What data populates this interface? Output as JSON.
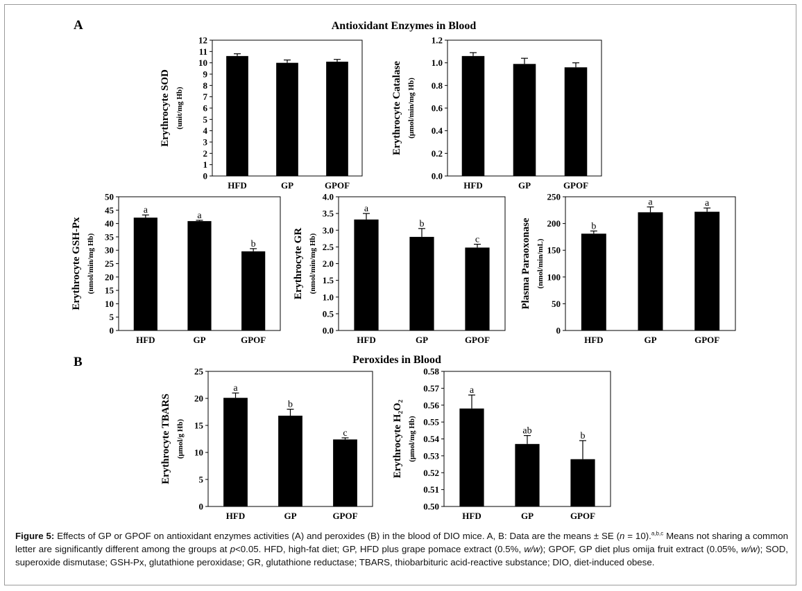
{
  "panel_a": {
    "letter": "A",
    "title": "Antioxidant Enzymes in Blood"
  },
  "panel_b": {
    "letter": "B",
    "title": "Peroxides in Blood"
  },
  "caption": {
    "label": "Figure 5:",
    "text_1": " Effects of GP or GPOF on antioxidant enzymes activities (A) and peroxides (B) in the blood of DIO mice. A, B: Data are the means ± SE (",
    "n_italic": "n",
    "text_2": " = 10).",
    "sup": "a,b,c",
    "text_3": " Means not sharing a common letter are significantly different among the groups at ",
    "p_italic": "p",
    "text_4": "<0.05. HFD, high-fat diet; GP, HFD plus grape pomace extract (0.5%, ",
    "ww1": "w/w",
    "text_5": "); GPOF, GP diet plus omija fruit extract (0.05%, ",
    "ww2": "w/w",
    "text_6": "); SOD, superoxide dismutase; GSH-Px, glutathione peroxidase; GR, glutathione reductase; TBARS, thiobarbituric acid-reactive substance; DIO, diet-induced obese."
  },
  "chart_data": [
    {
      "id": "sod",
      "type": "bar",
      "categories": [
        "HFD",
        "GP",
        "GPOF"
      ],
      "values": [
        10.6,
        10.0,
        10.1
      ],
      "errors": [
        0.2,
        0.25,
        0.2
      ],
      "sig_letters": [
        "",
        "",
        ""
      ],
      "ylabel": "Erythrocyte SOD",
      "yunit": "(unit/mg Hb)",
      "ylim": [
        0,
        12
      ],
      "yticks": [
        0,
        1,
        2,
        3,
        4,
        5,
        6,
        7,
        8,
        9,
        10,
        11,
        12
      ],
      "tick_decimals": 0
    },
    {
      "id": "catalase",
      "type": "bar",
      "categories": [
        "HFD",
        "GP",
        "GPOF"
      ],
      "values": [
        1.06,
        0.99,
        0.96
      ],
      "errors": [
        0.03,
        0.05,
        0.04
      ],
      "sig_letters": [
        "",
        "",
        ""
      ],
      "ylabel": "Erythrocyte Catalase",
      "yunit": "(μmol/min/mg Hb)",
      "ylim": [
        0,
        1.2
      ],
      "yticks": [
        0,
        0.2,
        0.4,
        0.6,
        0.8,
        1.0,
        1.2
      ],
      "tick_decimals": 1
    },
    {
      "id": "gshpx",
      "type": "bar",
      "categories": [
        "HFD",
        "GP",
        "GPOF"
      ],
      "values": [
        42.2,
        40.9,
        29.6
      ],
      "errors": [
        1.0,
        0.3,
        1.0
      ],
      "sig_letters": [
        "a",
        "a",
        "b"
      ],
      "ylabel": "Erythrocyte GSH-Px",
      "yunit": "(nmol/min/mg Hb)",
      "ylim": [
        0,
        50
      ],
      "yticks": [
        0,
        5,
        10,
        15,
        20,
        25,
        30,
        35,
        40,
        45,
        50
      ],
      "tick_decimals": 0
    },
    {
      "id": "gr",
      "type": "bar",
      "categories": [
        "HFD",
        "GP",
        "GPOF"
      ],
      "values": [
        3.32,
        2.8,
        2.48
      ],
      "errors": [
        0.18,
        0.25,
        0.1
      ],
      "sig_letters": [
        "a",
        "b",
        "c"
      ],
      "ylabel": "Erythrocyte GR",
      "yunit": "(nmol/min/mg Hb)",
      "ylim": [
        0,
        4.0
      ],
      "yticks": [
        0,
        0.5,
        1.0,
        1.5,
        2.0,
        2.5,
        3.0,
        3.5,
        4.0
      ],
      "tick_decimals": 1
    },
    {
      "id": "paraoxonase",
      "type": "bar",
      "categories": [
        "HFD",
        "GP",
        "GPOF"
      ],
      "values": [
        181,
        221,
        222
      ],
      "errors": [
        5,
        10,
        7
      ],
      "sig_letters": [
        "b",
        "a",
        "a"
      ],
      "ylabel": "Plasma Paraoxonase",
      "yunit": "(nmol/min/mL)",
      "ylim": [
        0,
        250
      ],
      "yticks": [
        0,
        50,
        100,
        150,
        200,
        250
      ],
      "tick_decimals": 0
    },
    {
      "id": "tbars",
      "type": "bar",
      "categories": [
        "HFD",
        "GP",
        "GPOF"
      ],
      "values": [
        20.1,
        16.8,
        12.4
      ],
      "errors": [
        0.9,
        1.2,
        0.3
      ],
      "sig_letters": [
        "a",
        "b",
        "c"
      ],
      "ylabel": "Erythrocyte TBARS",
      "yunit": "(μmol/g Hb)",
      "ylim": [
        0,
        25
      ],
      "yticks": [
        0,
        5,
        10,
        15,
        20,
        25
      ],
      "tick_decimals": 0
    },
    {
      "id": "h2o2",
      "type": "bar",
      "categories": [
        "HFD",
        "GP",
        "GPOF"
      ],
      "values": [
        0.558,
        0.537,
        0.528
      ],
      "errors": [
        0.008,
        0.005,
        0.011
      ],
      "sig_letters": [
        "a",
        "ab",
        "b"
      ],
      "ylabel": "Erythrocyte H₂O₂",
      "yunit": "(μmol/mg Hb)",
      "ylim": [
        0.5,
        0.58
      ],
      "yticks": [
        0.5,
        0.51,
        0.52,
        0.53,
        0.54,
        0.55,
        0.56,
        0.57,
        0.58
      ],
      "tick_decimals": 2
    }
  ]
}
